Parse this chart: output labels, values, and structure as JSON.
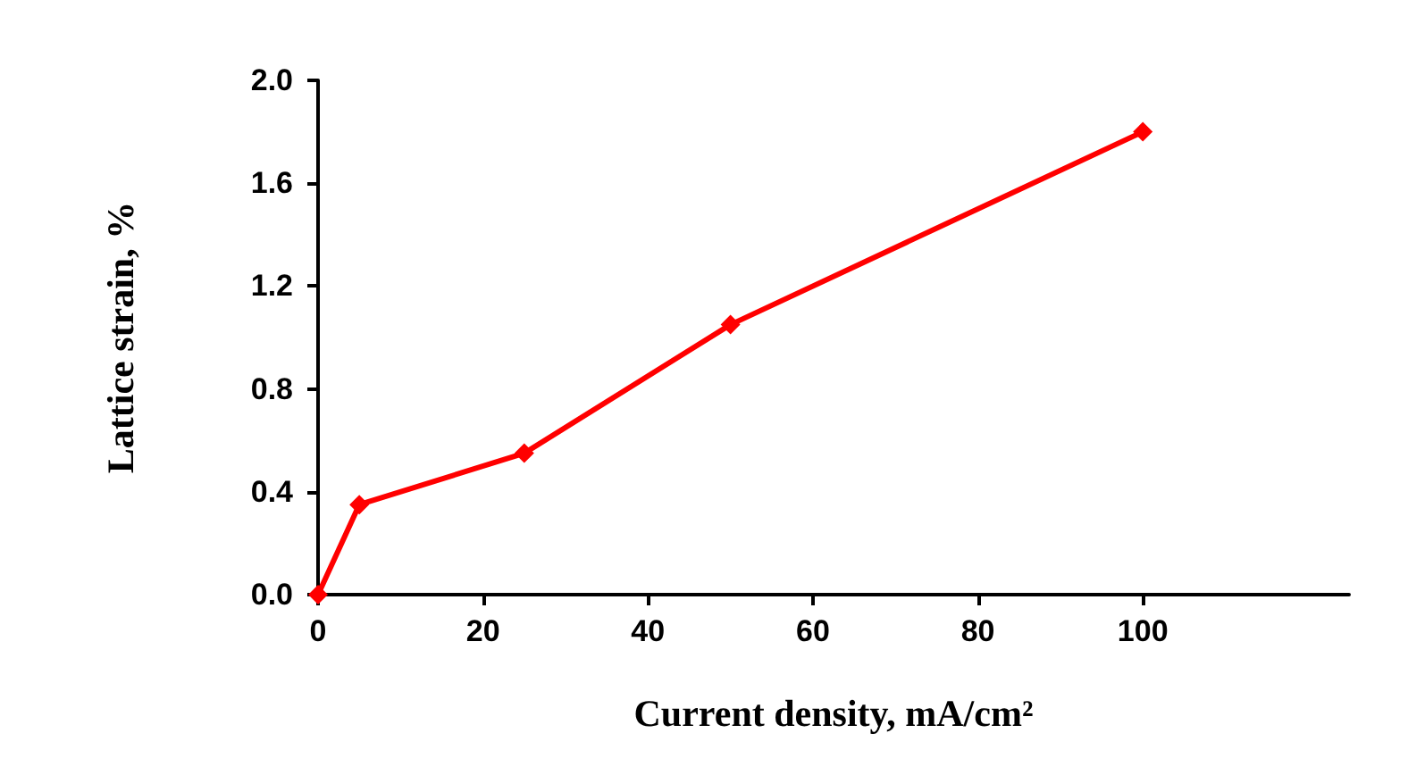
{
  "chart_data": {
    "type": "line",
    "xlabel": "Current density, mA/cm²",
    "ylabel": "Lattice strain, %",
    "x": [
      0,
      5,
      25,
      50,
      100
    ],
    "series": [
      {
        "color": "#ff0000",
        "values": [
          0,
          0.35,
          0.55,
          1.05,
          1.8
        ]
      }
    ],
    "xlim": [
      0,
      125
    ],
    "xticks": [
      0,
      20,
      40,
      60,
      80,
      100
    ],
    "ylim": [
      0,
      2
    ],
    "yticks": [
      {
        "value": 0,
        "label": "0.0"
      },
      0.4,
      0.8,
      1.2,
      1.6,
      {
        "value": 2,
        "label": "2.0"
      }
    ],
    "grid": false,
    "marker": "diamond",
    "line_style": "solid"
  }
}
